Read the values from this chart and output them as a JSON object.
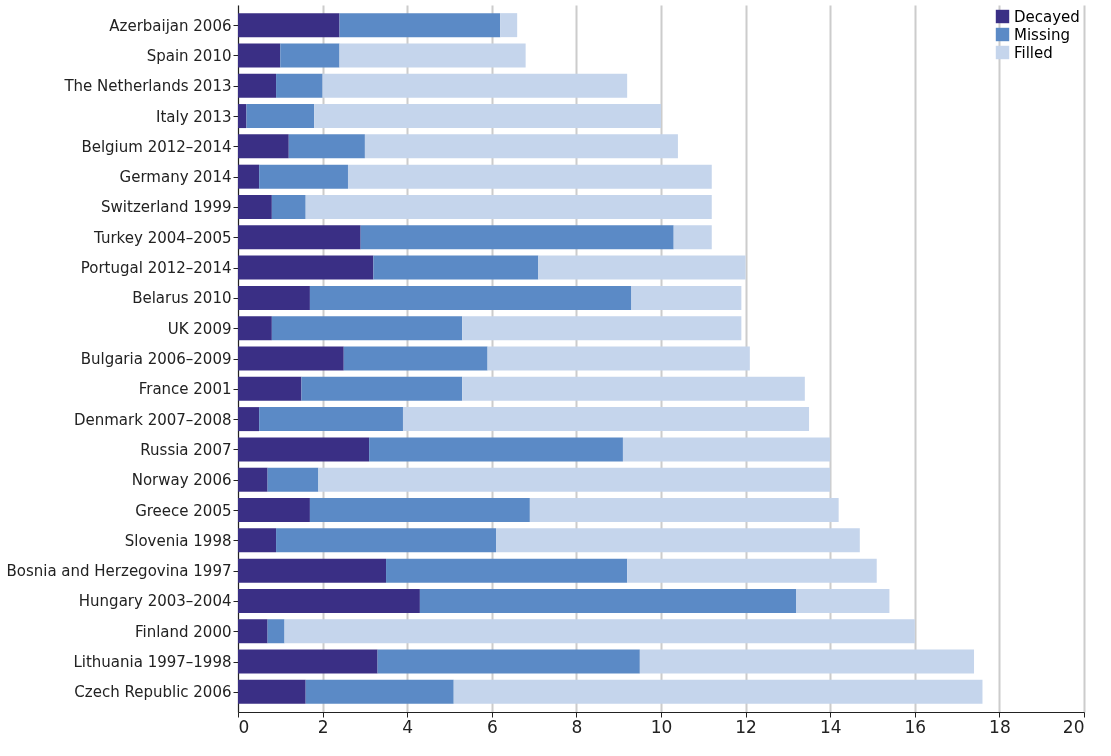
{
  "chart_data": {
    "type": "bar",
    "orientation": "horizontal",
    "stacked": true,
    "categories": [
      "Azerbaijan 2006",
      "Spain 2010",
      "The Netherlands 2013",
      "Italy 2013",
      "Belgium 2012–2014",
      "Germany 2014",
      "Switzerland 1999",
      "Turkey 2004–2005",
      "Portugal 2012–2014",
      "Belarus 2010",
      "UK 2009",
      "Bulgaria 2006–2009",
      "France 2001",
      "Denmark 2007–2008",
      "Russia 2007",
      "Norway 2006",
      "Greece 2005",
      "Slovenia 1998",
      "Bosnia and Herzegovina 1997",
      "Hungary 2003–2004",
      "Finland 2000",
      "Lithuania 1997–1998",
      "Czech Republic 2006"
    ],
    "series": [
      {
        "name": "Decayed",
        "color": "#3a2f85",
        "values": [
          2.4,
          1.0,
          0.9,
          0.2,
          1.2,
          0.5,
          0.8,
          2.9,
          3.2,
          1.7,
          0.8,
          2.5,
          1.5,
          0.5,
          3.1,
          0.7,
          1.7,
          0.9,
          3.5,
          4.3,
          0.7,
          3.3,
          1.6
        ]
      },
      {
        "name": "Missing",
        "color": "#5b8ac6",
        "values": [
          3.8,
          1.4,
          1.1,
          1.6,
          1.8,
          2.1,
          0.8,
          7.4,
          3.9,
          7.6,
          4.5,
          3.4,
          3.8,
          3.4,
          6.0,
          1.2,
          5.2,
          5.2,
          5.7,
          8.9,
          0.4,
          6.2,
          3.5
        ]
      },
      {
        "name": "Filled",
        "color": "#c5d5ec",
        "values": [
          0.4,
          4.4,
          7.2,
          8.2,
          7.4,
          8.6,
          9.6,
          0.9,
          4.9,
          2.6,
          6.6,
          6.2,
          8.1,
          9.6,
          4.9,
          12.1,
          7.3,
          8.6,
          5.9,
          2.2,
          14.9,
          7.9,
          12.5
        ]
      }
    ],
    "xlim": [
      0,
      20
    ],
    "xticks": [
      0,
      2,
      4,
      6,
      8,
      10,
      12,
      14,
      16,
      18,
      20
    ],
    "grid": "x",
    "legend": "top right"
  }
}
